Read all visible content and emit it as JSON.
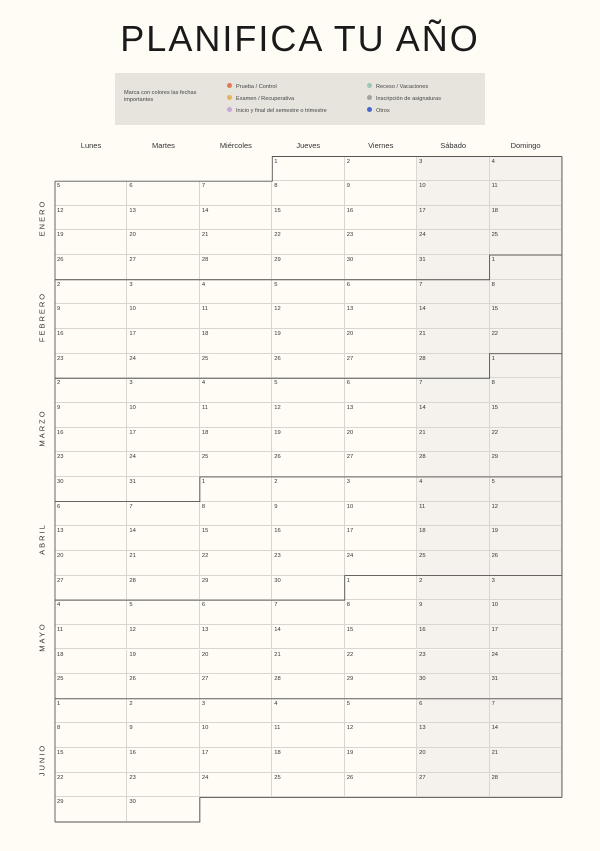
{
  "title": "PLANIFICA TU AÑO",
  "legend": {
    "note": "Marca con colores las fechas importantes",
    "items": [
      {
        "label": "Prueba / Control",
        "color": "#e07b55",
        "icon": "dot-icon"
      },
      {
        "label": "Examen / Recuperativa",
        "color": "#e6b25a",
        "icon": "dot-icon"
      },
      {
        "label": "Inicio y final del semestre o trimestre",
        "color": "#c6a8dc",
        "icon": "dot-icon"
      },
      {
        "label": "Receso / Vacaciones",
        "color": "#9cc7b4",
        "icon": "dot-icon"
      },
      {
        "label": "Inscripción de asignaturas",
        "color": "#a3a39b",
        "icon": "dot-icon"
      },
      {
        "label": "Otros",
        "color": "#4a66cf",
        "icon": "dot-icon"
      }
    ]
  },
  "weekdays": [
    "Lunes",
    "Martes",
    "Miércoles",
    "Jueves",
    "Viernes",
    "Sábado",
    "Domingo"
  ],
  "calendar": {
    "start_weekday": 3,
    "months": [
      {
        "name": "ENERO",
        "days": 31
      },
      {
        "name": "FEBRERO",
        "days": 28
      },
      {
        "name": "MARZO",
        "days": 31
      },
      {
        "name": "ABRIL",
        "days": 30
      },
      {
        "name": "MAYO",
        "days": 31
      },
      {
        "name": "JUNIO",
        "days": 30
      }
    ]
  }
}
